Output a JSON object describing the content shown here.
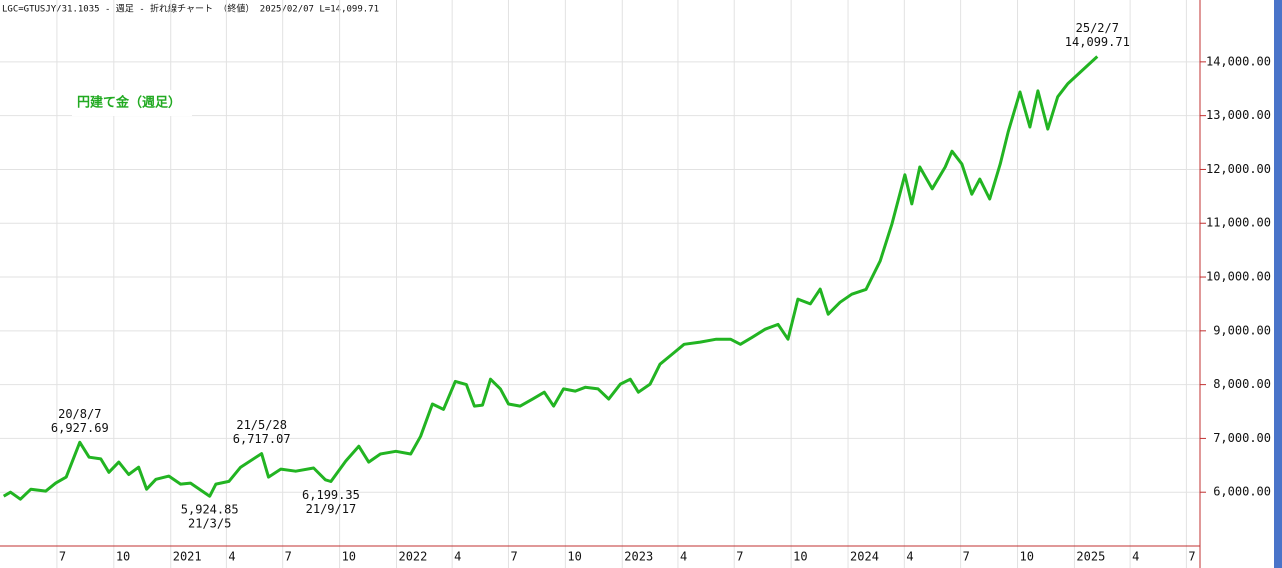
{
  "chart_data": {
    "type": "line",
    "title": "LGC=GTUSJY/31.1035 - 週足 - 折れ線チャート （終値） 2025/02/07 L=14,099.71",
    "x": [
      "2020-04-06",
      "2020-04-17",
      "2020-05-03",
      "2020-05-20",
      "2020-06-13",
      "2020-06-29",
      "2020-07-16",
      "2020-08-07",
      "2020-08-22",
      "2020-09-10",
      "2020-09-23",
      "2020-10-09",
      "2020-10-25",
      "2020-11-10",
      "2020-11-23",
      "2020-12-08",
      "2020-12-29",
      "2021-01-17",
      "2021-02-02",
      "2021-03-05",
      "2021-03-15",
      "2021-04-05",
      "2021-04-24",
      "2021-05-28",
      "2021-06-08",
      "2021-06-28",
      "2021-07-22",
      "2021-08-20",
      "2021-09-08",
      "2021-09-17",
      "2021-10-11",
      "2021-11-01",
      "2021-11-17",
      "2021-12-06",
      "2021-12-31",
      "2022-01-24",
      "2022-02-09",
      "2022-02-28",
      "2022-03-18",
      "2022-04-06",
      "2022-04-24",
      "2022-05-07",
      "2022-05-20",
      "2022-06-02",
      "2022-06-18",
      "2022-07-01",
      "2022-07-20",
      "2022-08-09",
      "2022-08-28",
      "2022-09-12",
      "2022-09-28",
      "2022-10-17",
      "2022-11-02",
      "2022-11-23",
      "2022-12-10",
      "2022-12-29",
      "2023-01-14",
      "2023-01-27",
      "2023-02-15",
      "2023-03-03",
      "2023-03-23",
      "2023-04-11",
      "2023-05-07",
      "2023-06-02",
      "2023-06-25",
      "2023-07-11",
      "2023-07-30",
      "2023-08-20",
      "2023-09-10",
      "2023-09-26",
      "2023-10-12",
      "2023-11-01",
      "2023-11-17",
      "2023-11-30",
      "2023-12-19",
      "2024-01-07",
      "2024-01-30",
      "2024-02-22",
      "2024-03-12",
      "2024-04-02",
      "2024-04-13",
      "2024-04-26",
      "2024-05-16",
      "2024-06-06",
      "2024-06-17",
      "2024-07-03",
      "2024-07-19",
      "2024-08-01",
      "2024-08-17",
      "2024-09-03",
      "2024-09-16",
      "2024-10-05",
      "2024-10-21",
      "2024-11-03",
      "2024-11-19",
      "2024-12-05",
      "2024-12-21",
      "2025-02-07"
    ],
    "series": [
      {
        "name": "円建て金（週足）",
        "color": "#22b422",
        "values": [
          5925,
          6000,
          5870,
          6055,
          6020,
          6170,
          6280,
          6927.69,
          6650,
          6620,
          6370,
          6560,
          6330,
          6465,
          6055,
          6240,
          6300,
          6150,
          6170,
          5924.85,
          6150,
          6200,
          6465,
          6717.07,
          6280,
          6430,
          6390,
          6450,
          6230,
          6199.35,
          6580,
          6855,
          6560,
          6710,
          6760,
          6710,
          7040,
          7640,
          7540,
          8060,
          8000,
          7600,
          7620,
          8100,
          7920,
          7640,
          7600,
          7730,
          7860,
          7600,
          7920,
          7880,
          7950,
          7920,
          7730,
          8010,
          8100,
          7860,
          8010,
          8380,
          8570,
          8750,
          8790,
          8845,
          8845,
          8750,
          8880,
          9030,
          9120,
          8845,
          9590,
          9500,
          9775,
          9310,
          9530,
          9680,
          9770,
          10300,
          10990,
          11900,
          11360,
          12045,
          11640,
          12045,
          12340,
          12100,
          11540,
          11820,
          11450,
          12100,
          12700,
          13440,
          12790,
          13460,
          12750,
          13350,
          13590,
          14099.71
        ]
      }
    ],
    "xlim": [
      "2020-03-31",
      "2025-07-23"
    ],
    "xticks": [
      {
        "value": "2020-07-01",
        "label": "7"
      },
      {
        "value": "2020-10-01",
        "label": "10"
      },
      {
        "value": "2021-01-01",
        "label": "2021"
      },
      {
        "value": "2021-04-01",
        "label": "4"
      },
      {
        "value": "2021-07-01",
        "label": "7"
      },
      {
        "value": "2021-10-01",
        "label": "10"
      },
      {
        "value": "2022-01-01",
        "label": "2022"
      },
      {
        "value": "2022-04-01",
        "label": "4"
      },
      {
        "value": "2022-07-01",
        "label": "7"
      },
      {
        "value": "2022-10-01",
        "label": "10"
      },
      {
        "value": "2023-01-01",
        "label": "2023"
      },
      {
        "value": "2023-04-01",
        "label": "4"
      },
      {
        "value": "2023-07-01",
        "label": "7"
      },
      {
        "value": "2023-10-01",
        "label": "10"
      },
      {
        "value": "2024-01-01",
        "label": "2024"
      },
      {
        "value": "2024-04-01",
        "label": "4"
      },
      {
        "value": "2024-07-01",
        "label": "7"
      },
      {
        "value": "2024-10-01",
        "label": "10"
      },
      {
        "value": "2025-01-01",
        "label": "2025"
      },
      {
        "value": "2025-04-01",
        "label": "4"
      },
      {
        "value": "2025-07-01",
        "label": "7"
      }
    ],
    "ylim": [
      5000,
      15150
    ],
    "yticks": [
      {
        "value": 6000,
        "label": "6,000.00"
      },
      {
        "value": 7000,
        "label": "7,000.00"
      },
      {
        "value": 8000,
        "label": "8,000.00"
      },
      {
        "value": 9000,
        "label": "9,000.00"
      },
      {
        "value": 10000,
        "label": "10,000.00"
      },
      {
        "value": 11000,
        "label": "11,000.00"
      },
      {
        "value": 12000,
        "label": "12,000.00"
      },
      {
        "value": 13000,
        "label": "13,000.00"
      },
      {
        "value": 14000,
        "label": "14,000.00"
      }
    ],
    "grid": true,
    "annotations": [
      {
        "x": "2020-08-07",
        "lines": [
          "20/8/7",
          "6,927.69"
        ],
        "position": "above"
      },
      {
        "x": "2021-03-05",
        "lines": [
          "5,924.85",
          "21/3/5"
        ],
        "position": "below"
      },
      {
        "x": "2021-05-28",
        "lines": [
          "21/5/28",
          "6,717.07"
        ],
        "position": "above"
      },
      {
        "x": "2021-09-17",
        "lines": [
          "6,199.35",
          "21/9/17"
        ],
        "position": "below"
      },
      {
        "x": "2025-02-07",
        "lines": [
          "25/2/7",
          "14,099.71"
        ],
        "position": "above"
      }
    ]
  }
}
